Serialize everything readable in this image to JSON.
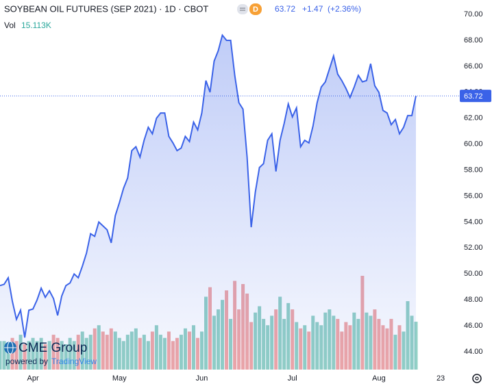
{
  "header": {
    "title": "SOYBEAN OIL FUTURES (SEP 2021) · 1D · CBOT",
    "badge": "D",
    "quote": {
      "last": "63.72",
      "change": "+1.47",
      "change_pct": "(+2.36%)"
    },
    "volume_label": "Vol",
    "volume_last": "15.113K"
  },
  "logo": {
    "name": "CME Group",
    "powered": "powered by",
    "brand": "TradingView"
  },
  "chart_data": {
    "type": "line",
    "categories": [
      null,
      null,
      null,
      null,
      null,
      null,
      null,
      null,
      "Apr",
      null,
      null,
      null,
      null,
      null,
      null,
      null,
      null,
      null,
      null,
      null,
      null,
      null,
      null,
      null,
      null,
      null,
      null,
      null,
      null,
      "May",
      null,
      null,
      null,
      null,
      null,
      null,
      null,
      null,
      null,
      null,
      null,
      null,
      null,
      null,
      null,
      null,
      null,
      null,
      null,
      "Jun",
      null,
      null,
      null,
      null,
      null,
      null,
      null,
      null,
      null,
      null,
      null,
      null,
      null,
      null,
      null,
      null,
      null,
      null,
      null,
      null,
      null,
      "Jul",
      null,
      null,
      null,
      null,
      null,
      null,
      null,
      null,
      null,
      null,
      null,
      null,
      null,
      null,
      null,
      null,
      null,
      null,
      null,
      null,
      "Aug",
      null,
      null,
      null,
      null,
      null,
      null,
      null,
      null,
      null,
      null,
      null,
      null,
      null,
      null,
      "23"
    ],
    "series": [
      {
        "name": "Price",
        "color": "#3a62e8",
        "values": [
          49.1,
          49.2,
          49.7,
          47.9,
          46.5,
          47.2,
          45.1,
          47.2,
          47.3,
          48.0,
          48.9,
          48.2,
          48.7,
          48.1,
          46.8,
          48.3,
          49.1,
          49.3,
          50.0,
          49.7,
          50.6,
          51.6,
          53.1,
          52.9,
          54.0,
          53.7,
          53.4,
          52.4,
          54.5,
          55.5,
          56.6,
          57.4,
          59.5,
          59.8,
          59.0,
          60.3,
          61.3,
          60.8,
          62.0,
          62.4,
          62.4,
          60.6,
          60.1,
          59.5,
          59.7,
          60.6,
          60.2,
          61.7,
          61.1,
          62.4,
          64.9,
          64.0,
          66.4,
          67.2,
          68.4,
          68.0,
          68.0,
          65.3,
          63.2,
          62.7,
          59.0,
          53.6,
          56.3,
          58.2,
          58.5,
          60.3,
          60.8,
          57.9,
          60.3,
          61.6,
          63.1,
          62.1,
          62.8,
          59.8,
          60.3,
          60.1,
          61.4,
          63.2,
          64.4,
          64.8,
          65.8,
          66.8,
          65.4,
          64.9,
          64.3,
          63.6,
          64.4,
          65.3,
          64.8,
          64.9,
          66.2,
          64.5,
          64.0,
          62.6,
          62.4,
          61.5,
          61.9,
          60.8,
          61.3,
          62.2,
          62.2,
          63.72,
          null,
          null,
          null,
          null,
          null,
          null
        ]
      },
      {
        "name": "Vol",
        "up_color": "#93d1c5",
        "down_color": "#f1a7a6",
        "values": [
          9,
          9,
          8,
          10,
          9,
          11,
          8,
          9,
          10,
          9,
          10,
          8,
          9,
          11,
          10,
          9,
          8,
          10,
          9,
          11,
          12,
          10,
          11,
          13,
          14,
          12,
          11,
          13,
          12,
          10,
          9,
          11,
          12,
          13,
          10,
          11,
          9,
          12,
          14,
          11,
          10,
          12,
          9,
          10,
          11,
          13,
          12,
          14,
          10,
          12,
          23,
          26,
          17,
          19,
          22,
          25,
          16,
          28,
          19,
          27,
          24,
          15,
          18,
          20,
          16,
          14,
          17,
          19,
          23,
          16,
          21,
          19,
          15,
          13,
          14,
          12,
          17,
          15,
          14,
          18,
          19,
          17,
          16,
          12,
          15,
          14,
          18,
          16,
          29.6,
          18,
          17,
          19,
          16,
          14,
          13,
          16,
          11,
          14,
          12,
          21.6,
          17,
          15.113,
          null,
          null,
          null,
          null,
          null,
          null
        ]
      }
    ],
    "ylim": [
      42.63,
      71.11
    ],
    "yticks": [
      {
        "value": 44,
        "label": "44.00"
      },
      {
        "value": 46,
        "label": "46.00"
      },
      {
        "value": 48,
        "label": "48.00"
      },
      {
        "value": 50,
        "label": "50.00"
      },
      {
        "value": 52,
        "label": "52.00"
      },
      {
        "value": 54,
        "label": "54.00"
      },
      {
        "value": 56,
        "label": "56.00"
      },
      {
        "value": 58,
        "label": "58.00"
      },
      {
        "value": 60,
        "label": "60.00"
      },
      {
        "value": 62,
        "label": "62.00"
      },
      {
        "value": 64,
        "label": "64.00"
      },
      {
        "value": 66,
        "label": "66.00"
      },
      {
        "value": 68,
        "label": "68.00"
      },
      {
        "value": 70,
        "label": "70.00"
      }
    ],
    "grid": false
  }
}
